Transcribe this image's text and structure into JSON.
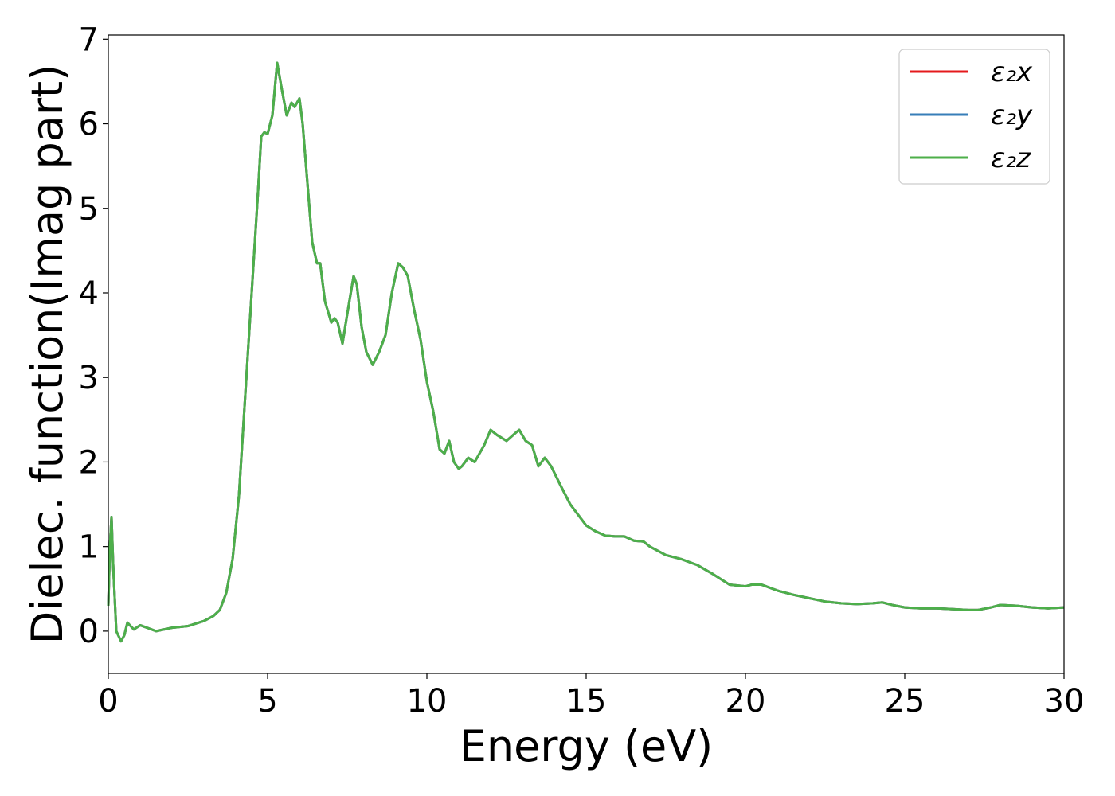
{
  "chart_data": {
    "type": "line",
    "title": "",
    "xlabel": "Energy (eV)",
    "ylabel": "Dielec. function(Imag part)",
    "xlim": [
      0,
      30
    ],
    "ylim": [
      -0.5,
      7.05
    ],
    "xticks": [
      0,
      5,
      10,
      15,
      20,
      25,
      30
    ],
    "xtick_labels": [
      "0",
      "5",
      "10",
      "15",
      "20",
      "25",
      "30"
    ],
    "yticks": [
      0,
      1,
      2,
      3,
      4,
      5,
      6,
      7
    ],
    "ytick_labels": [
      "0",
      "1",
      "2",
      "3",
      "4",
      "5",
      "6",
      "7"
    ],
    "grid": false,
    "legend_position": "top-right",
    "x": [
      0.0,
      0.05,
      0.1,
      0.15,
      0.25,
      0.4,
      0.5,
      0.6,
      0.8,
      1.0,
      1.5,
      2.0,
      2.5,
      3.0,
      3.3,
      3.5,
      3.7,
      3.9,
      4.1,
      4.3,
      4.5,
      4.7,
      4.8,
      4.9,
      5.0,
      5.15,
      5.3,
      5.45,
      5.6,
      5.75,
      5.85,
      6.0,
      6.1,
      6.25,
      6.4,
      6.55,
      6.65,
      6.8,
      7.0,
      7.1,
      7.2,
      7.35,
      7.5,
      7.7,
      7.8,
      7.95,
      8.1,
      8.3,
      8.5,
      8.7,
      8.9,
      9.1,
      9.25,
      9.4,
      9.6,
      9.8,
      10.0,
      10.2,
      10.4,
      10.55,
      10.7,
      10.85,
      11.0,
      11.1,
      11.3,
      11.5,
      11.8,
      12.0,
      12.2,
      12.5,
      12.8,
      12.9,
      13.1,
      13.3,
      13.5,
      13.7,
      13.9,
      14.2,
      14.5,
      14.8,
      15.0,
      15.3,
      15.6,
      15.9,
      16.2,
      16.5,
      16.8,
      17.0,
      17.5,
      18.0,
      18.5,
      19.0,
      19.5,
      20.0,
      20.2,
      20.5,
      21.0,
      21.5,
      22.0,
      22.5,
      23.0,
      23.5,
      24.0,
      24.3,
      24.6,
      25.0,
      25.5,
      26.0,
      26.5,
      27.0,
      27.3,
      27.7,
      28.0,
      28.5,
      29.0,
      29.5,
      30.0
    ],
    "series": [
      {
        "name": "ε₂x",
        "color": "#e41a1c",
        "values": [
          0.3,
          1.0,
          1.35,
          0.8,
          0.0,
          -0.12,
          -0.05,
          0.1,
          0.02,
          0.07,
          0.0,
          0.04,
          0.06,
          0.12,
          0.18,
          0.25,
          0.45,
          0.85,
          1.6,
          2.8,
          4.0,
          5.2,
          5.85,
          5.9,
          5.88,
          6.1,
          6.72,
          6.4,
          6.1,
          6.25,
          6.2,
          6.3,
          6.0,
          5.3,
          4.6,
          4.35,
          4.35,
          3.9,
          3.65,
          3.7,
          3.65,
          3.4,
          3.75,
          4.2,
          4.1,
          3.6,
          3.3,
          3.15,
          3.3,
          3.5,
          4.0,
          4.35,
          4.3,
          4.2,
          3.8,
          3.45,
          2.95,
          2.6,
          2.15,
          2.1,
          2.25,
          2.0,
          1.92,
          1.95,
          2.05,
          2.0,
          2.2,
          2.38,
          2.32,
          2.25,
          2.35,
          2.38,
          2.25,
          2.2,
          1.95,
          2.05,
          1.95,
          1.72,
          1.5,
          1.35,
          1.25,
          1.18,
          1.13,
          1.12,
          1.12,
          1.07,
          1.06,
          1.0,
          0.9,
          0.85,
          0.78,
          0.67,
          0.55,
          0.53,
          0.55,
          0.55,
          0.48,
          0.43,
          0.39,
          0.35,
          0.33,
          0.32,
          0.33,
          0.34,
          0.31,
          0.28,
          0.27,
          0.27,
          0.26,
          0.25,
          0.25,
          0.28,
          0.31,
          0.3,
          0.28,
          0.27,
          0.28
        ]
      },
      {
        "name": "ε₂y",
        "color": "#377eb8",
        "values": [
          0.3,
          1.0,
          1.35,
          0.8,
          0.0,
          -0.12,
          -0.05,
          0.1,
          0.02,
          0.07,
          0.0,
          0.04,
          0.06,
          0.12,
          0.18,
          0.25,
          0.45,
          0.85,
          1.6,
          2.8,
          4.0,
          5.2,
          5.85,
          5.9,
          5.88,
          6.1,
          6.72,
          6.4,
          6.1,
          6.25,
          6.2,
          6.3,
          6.0,
          5.3,
          4.6,
          4.35,
          4.35,
          3.9,
          3.65,
          3.7,
          3.65,
          3.4,
          3.75,
          4.2,
          4.1,
          3.6,
          3.3,
          3.15,
          3.3,
          3.5,
          4.0,
          4.35,
          4.3,
          4.2,
          3.8,
          3.45,
          2.95,
          2.6,
          2.15,
          2.1,
          2.25,
          2.0,
          1.92,
          1.95,
          2.05,
          2.0,
          2.2,
          2.38,
          2.32,
          2.25,
          2.35,
          2.38,
          2.25,
          2.2,
          1.95,
          2.05,
          1.95,
          1.72,
          1.5,
          1.35,
          1.25,
          1.18,
          1.13,
          1.12,
          1.12,
          1.07,
          1.06,
          1.0,
          0.9,
          0.85,
          0.78,
          0.67,
          0.55,
          0.53,
          0.55,
          0.55,
          0.48,
          0.43,
          0.39,
          0.35,
          0.33,
          0.32,
          0.33,
          0.34,
          0.31,
          0.28,
          0.27,
          0.27,
          0.26,
          0.25,
          0.25,
          0.28,
          0.31,
          0.3,
          0.28,
          0.27,
          0.28
        ]
      },
      {
        "name": "ε₂z",
        "color": "#4daf4a",
        "values": [
          0.3,
          1.0,
          1.35,
          0.8,
          0.0,
          -0.12,
          -0.05,
          0.1,
          0.02,
          0.07,
          0.0,
          0.04,
          0.06,
          0.12,
          0.18,
          0.25,
          0.45,
          0.85,
          1.6,
          2.8,
          4.0,
          5.2,
          5.85,
          5.9,
          5.88,
          6.1,
          6.72,
          6.4,
          6.1,
          6.25,
          6.2,
          6.3,
          6.0,
          5.3,
          4.6,
          4.35,
          4.35,
          3.9,
          3.65,
          3.7,
          3.65,
          3.4,
          3.75,
          4.2,
          4.1,
          3.6,
          3.3,
          3.15,
          3.3,
          3.5,
          4.0,
          4.35,
          4.3,
          4.2,
          3.8,
          3.45,
          2.95,
          2.6,
          2.15,
          2.1,
          2.25,
          2.0,
          1.92,
          1.95,
          2.05,
          2.0,
          2.2,
          2.38,
          2.32,
          2.25,
          2.35,
          2.38,
          2.25,
          2.2,
          1.95,
          2.05,
          1.95,
          1.72,
          1.5,
          1.35,
          1.25,
          1.18,
          1.13,
          1.12,
          1.12,
          1.07,
          1.06,
          1.0,
          0.9,
          0.85,
          0.78,
          0.67,
          0.55,
          0.53,
          0.55,
          0.55,
          0.48,
          0.43,
          0.39,
          0.35,
          0.33,
          0.32,
          0.33,
          0.34,
          0.31,
          0.28,
          0.27,
          0.27,
          0.26,
          0.25,
          0.25,
          0.28,
          0.31,
          0.3,
          0.28,
          0.27,
          0.28
        ]
      }
    ]
  }
}
